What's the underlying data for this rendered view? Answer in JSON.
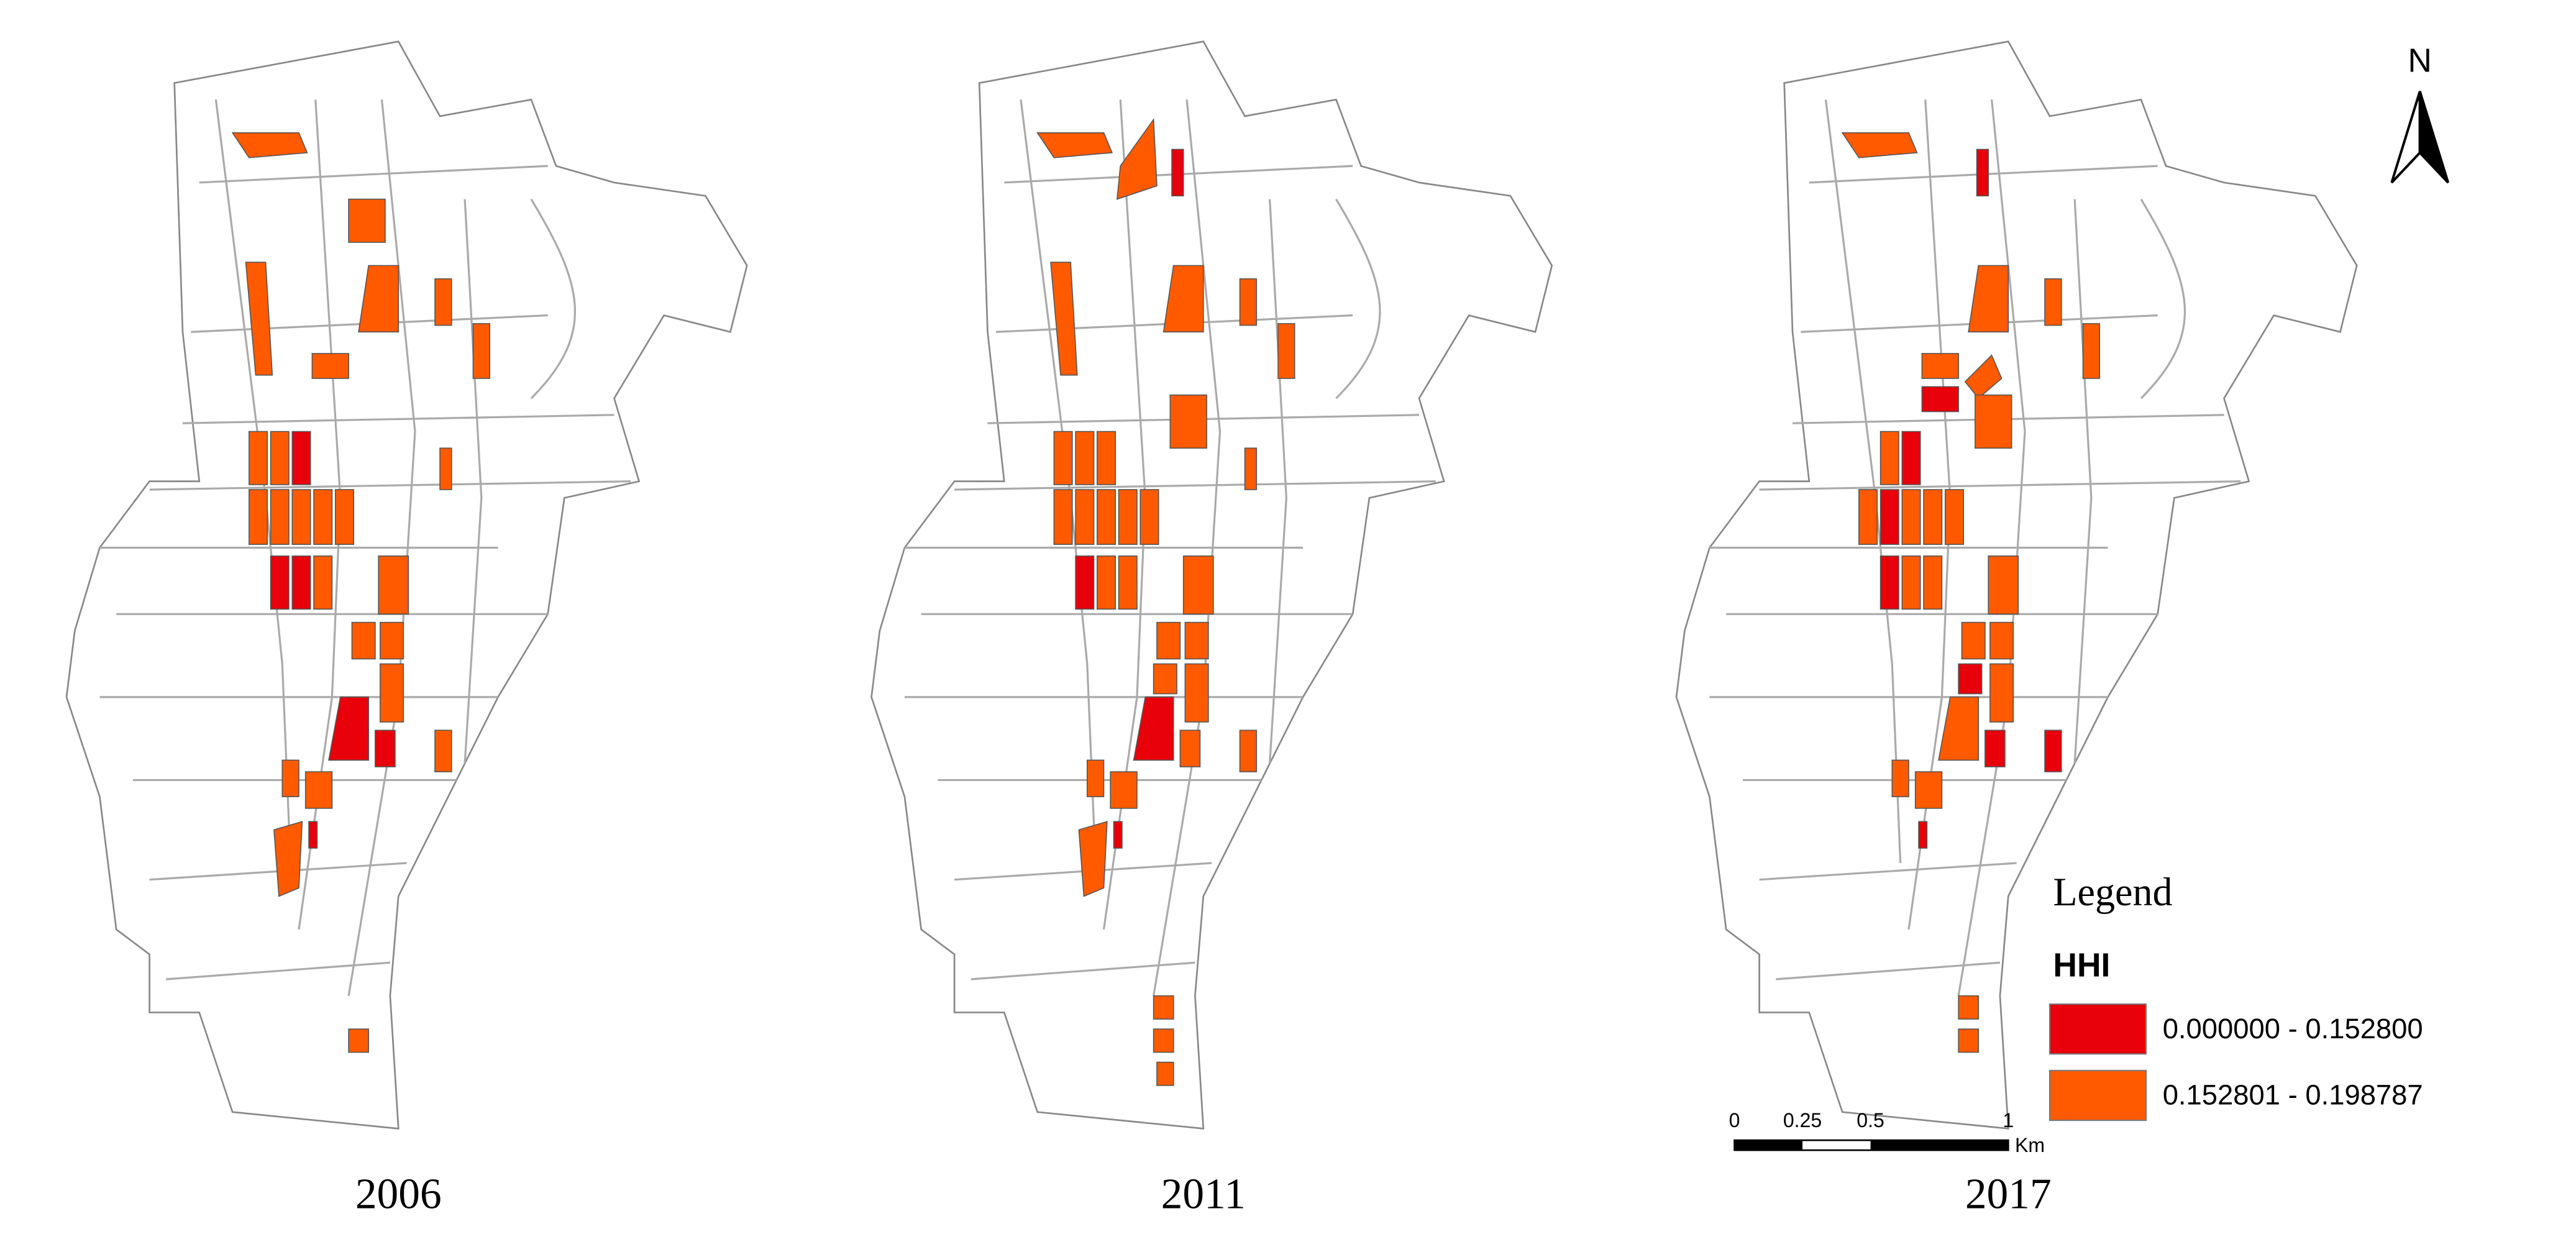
{
  "maps": [
    {
      "label": "2006"
    },
    {
      "label": "2011"
    },
    {
      "label": "2017"
    }
  ],
  "north_arrow": "N",
  "legend": {
    "title": "Legend",
    "heading": "HHI",
    "items": [
      {
        "label": "0.000000 - 0.152800",
        "color": "#e8000b"
      },
      {
        "label": "0.152801 - 0.198787",
        "color": "#ff5a00"
      }
    ]
  },
  "scale_bar": {
    "labels": [
      "0",
      "0.25",
      "0.5",
      "1"
    ],
    "unit": "Km"
  }
}
